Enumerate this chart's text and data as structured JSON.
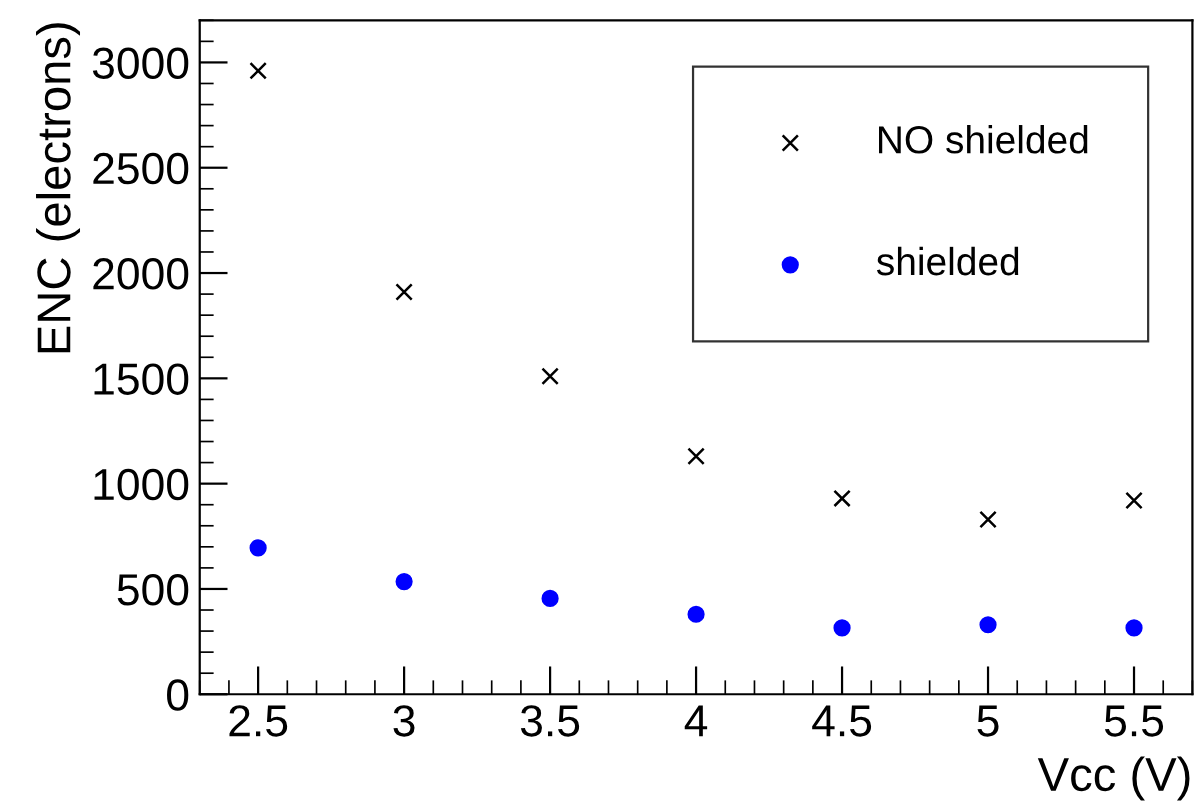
{
  "chart_data": {
    "type": "scatter",
    "xlabel": "Vcc (V)",
    "ylabel": "ENC (electrons)",
    "x": [
      2.5,
      3,
      3.5,
      4,
      4.5,
      5,
      5.5
    ],
    "series": [
      {
        "name": "NO shielded",
        "color": "#000000",
        "marker": "cross",
        "values": [
          2960,
          1910,
          1510,
          1130,
          930,
          830,
          920
        ]
      },
      {
        "name": "shielded",
        "color": "#0000ff",
        "marker": "circle",
        "values": [
          695,
          535,
          455,
          380,
          315,
          330,
          315
        ]
      }
    ],
    "xlim": [
      2.3,
      5.7
    ],
    "xticks": [
      {
        "value": 2.5,
        "label": "2.5"
      },
      3,
      {
        "value": 3.5,
        "label": "3.5"
      },
      4,
      {
        "value": 4.5,
        "label": "4.5"
      },
      5,
      {
        "value": 5.5,
        "label": "5.5"
      }
    ],
    "ylim": [
      0,
      3200
    ],
    "yticks": [
      0,
      500,
      1000,
      1500,
      2000,
      2500,
      3000
    ],
    "grid": false,
    "legend": "top right"
  }
}
